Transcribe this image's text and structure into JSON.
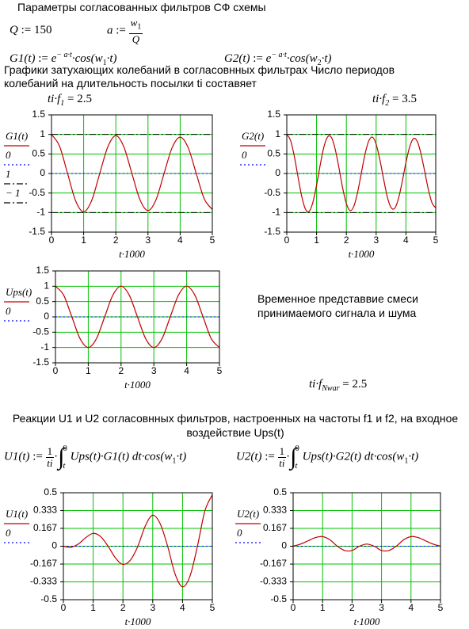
{
  "header": {
    "title": "Параметры согласованных фильтров СФ схемы"
  },
  "definitions": {
    "q": [
      "Q",
      ":=",
      "150"
    ],
    "a": [
      "a",
      ":=",
      "w",
      "1",
      "Q"
    ]
  },
  "functions": {
    "g1": [
      "G1(t)",
      ":=",
      "e",
      "− a·t",
      "·cos(w",
      "1",
      "·t)"
    ],
    "g2": [
      "G2(t)",
      ":=",
      "e",
      "− a·t",
      "·cos(w",
      "2",
      "·t)"
    ]
  },
  "section1": "Графики затухающих колебаний в согласовнных фильтрах Число периодов колебаний на длительность посылки ti составяет",
  "ratios": {
    "f1": [
      "ti·f",
      "1",
      "= 2.5"
    ],
    "f2": [
      "ti·f",
      "2",
      "= 3.5"
    ],
    "nwar": [
      "ti·f",
      "Nwar",
      "= 2.5"
    ]
  },
  "note": "Временное представвие смеси принимаемого сигнала и шума",
  "section2": "Реакции U1 и U2 согласовнных фильтров, настроенных на частоты f1 и f2, на входное воздействие Ups(t)",
  "reactions": {
    "u1": [
      "U1(t)",
      ":=",
      "1",
      "ti",
      "·",
      "∫",
      "0",
      "t",
      "Ups(t)·G1(t) dt·cos(w",
      "1",
      "·t)"
    ],
    "u2": [
      "U2(t)",
      ":=",
      "1",
      "ti",
      "·",
      "∫",
      "0",
      "t",
      "Ups(t)·G2(t) dt·cos(w",
      "1",
      "·t)"
    ]
  },
  "chart_data": [
    {
      "type": "line",
      "x_label": "t·1000",
      "x": [
        0,
        0.25,
        0.5,
        0.75,
        1,
        1.25,
        1.5,
        1.75,
        2,
        2.25,
        2.5,
        2.75,
        3,
        3.25,
        3.5,
        3.75,
        4,
        4.25,
        4.5,
        4.75,
        5
      ],
      "series": [
        {
          "name": "G1(t)",
          "color": "#c00000",
          "values": [
            1,
            0.7,
            0,
            -0.7,
            -0.98,
            -0.69,
            0,
            0.68,
            0.97,
            0.68,
            0,
            -0.67,
            -0.95,
            -0.67,
            0,
            0.66,
            0.93,
            0.66,
            0,
            -0.65,
            -0.92
          ]
        }
      ],
      "hlines": [
        {
          "name": "0",
          "value": 0,
          "color": "#0000ff",
          "style": "dotted"
        },
        {
          "name": "1",
          "value": 1,
          "color": "#000000",
          "style": "dash-dot"
        },
        {
          "name": "− 1",
          "value": -1,
          "color": "#000000",
          "style": "dash-dot"
        }
      ],
      "xlim": [
        0,
        5
      ],
      "ylim": [
        -1.5,
        1.5
      ],
      "xticks": [
        0,
        1,
        2,
        3,
        4,
        5
      ],
      "yticks": [
        1.5,
        1,
        0.5,
        0,
        -0.5,
        -1,
        -1.5
      ],
      "grid": true,
      "grid_color": "#00c000"
    },
    {
      "type": "line",
      "x_label": "t·1000",
      "x": [
        0,
        0.125,
        0.25,
        0.375,
        0.5,
        0.625,
        0.75,
        0.875,
        1,
        1.125,
        1.25,
        1.375,
        1.5,
        1.625,
        1.75,
        1.875,
        2,
        2.125,
        2.25,
        2.375,
        2.5,
        2.625,
        2.75,
        2.875,
        3,
        3.125,
        3.25,
        3.375,
        3.5,
        3.625,
        3.75,
        3.875,
        4,
        4.125,
        4.25,
        4.375,
        4.5,
        4.625,
        4.75,
        4.875,
        5
      ],
      "series": [
        {
          "name": "G2(t)",
          "color": "#c00000",
          "values": [
            1,
            0.85,
            0.45,
            -0.08,
            -0.58,
            -0.91,
            -0.97,
            -0.74,
            -0.3,
            0.23,
            0.69,
            0.94,
            0.92,
            0.62,
            0.15,
            -0.37,
            -0.77,
            -0.95,
            -0.84,
            -0.49,
            0,
            0.49,
            0.83,
            0.93,
            0.75,
            0.35,
            -0.14,
            -0.6,
            -0.87,
            -0.89,
            -0.64,
            -0.21,
            0.28,
            0.68,
            0.89,
            0.83,
            0.52,
            0.07,
            -0.4,
            -0.75,
            -0.88
          ]
        }
      ],
      "hlines": [
        {
          "name": "0",
          "value": 0,
          "color": "#0000ff",
          "style": "dotted"
        },
        {
          "value": 1,
          "color": "#000000",
          "style": "dash-dot"
        },
        {
          "value": -1,
          "color": "#000000",
          "style": "dash-dot"
        }
      ],
      "xlim": [
        0,
        5
      ],
      "ylim": [
        -1.5,
        1.5
      ],
      "xticks": [
        0,
        1,
        2,
        3,
        4,
        5
      ],
      "yticks": [
        1.5,
        1,
        0.5,
        0,
        -0.5,
        -1,
        -1.5
      ],
      "grid": true,
      "grid_color": "#00c000"
    },
    {
      "type": "line",
      "x_label": "t·1000",
      "x": [
        0,
        0.25,
        0.5,
        0.75,
        1,
        1.25,
        1.5,
        1.75,
        2,
        2.25,
        2.5,
        2.75,
        3,
        3.25,
        3.5,
        3.75,
        4,
        4.25,
        4.5,
        4.75,
        5
      ],
      "series": [
        {
          "name": "Ups(t)",
          "color": "#c00000",
          "values": [
            1,
            0.71,
            0,
            -0.71,
            -1,
            -0.71,
            0,
            0.71,
            1,
            0.71,
            0,
            -0.71,
            -1,
            -0.71,
            0,
            0.71,
            1,
            0.71,
            0,
            -0.71,
            -1
          ]
        }
      ],
      "hlines": [
        {
          "name": "0",
          "value": 0,
          "color": "#0000ff",
          "style": "dotted"
        }
      ],
      "xlim": [
        0,
        5
      ],
      "ylim": [
        -1.5,
        1.5
      ],
      "xticks": [
        0,
        1,
        2,
        3,
        4,
        5
      ],
      "yticks": [
        1.5,
        1,
        0.5,
        0,
        -0.5,
        -1,
        -1.5
      ],
      "grid": true,
      "grid_color": "#00c000"
    },
    {
      "type": "line",
      "x_label": "t·1000",
      "x": [
        0,
        0.25,
        0.5,
        0.75,
        1,
        1.25,
        1.5,
        1.75,
        2,
        2.25,
        2.5,
        2.75,
        3,
        3.25,
        3.5,
        3.75,
        4,
        4.25,
        4.5,
        4.75,
        5
      ],
      "series": [
        {
          "name": "U1(t)",
          "color": "#c00000",
          "values": [
            0,
            -0.01,
            0.02,
            0.08,
            0.12,
            0.09,
            0,
            -0.11,
            -0.17,
            -0.13,
            0,
            0.19,
            0.29,
            0.21,
            0,
            -0.26,
            -0.38,
            -0.28,
            0,
            0.33,
            0.48
          ]
        }
      ],
      "hlines": [
        {
          "name": "0",
          "value": 0,
          "color": "#0000ff",
          "style": "dotted"
        }
      ],
      "xlim": [
        0,
        5
      ],
      "ylim": [
        -0.5,
        0.5
      ],
      "xticks": [
        0,
        1,
        2,
        3,
        4,
        5
      ],
      "yticks": [
        0.5,
        0.333,
        0.167,
        0,
        -0.167,
        -0.333,
        -0.5
      ],
      "grid": true,
      "grid_color": "#00c000"
    },
    {
      "type": "line",
      "x_label": "t·1000",
      "x": [
        0,
        0.25,
        0.5,
        0.75,
        1,
        1.25,
        1.5,
        1.75,
        2,
        2.25,
        2.5,
        2.75,
        3,
        3.25,
        3.5,
        3.75,
        4,
        4.25,
        4.5,
        4.75,
        5
      ],
      "series": [
        {
          "name": "U2(t)",
          "color": "#c00000",
          "values": [
            0,
            0.02,
            0.05,
            0.08,
            0.09,
            0.06,
            0,
            -0.04,
            -0.04,
            0,
            0.02,
            0,
            -0.04,
            -0.04,
            0,
            0.06,
            0.09,
            0.08,
            0.05,
            0.02,
            0
          ]
        }
      ],
      "hlines": [
        {
          "name": "0",
          "value": 0,
          "color": "#0000ff",
          "style": "dotted"
        }
      ],
      "xlim": [
        0,
        5
      ],
      "ylim": [
        -0.5,
        0.5
      ],
      "xticks": [
        0,
        1,
        2,
        3,
        4,
        5
      ],
      "yticks": [
        0.5,
        0.333,
        0.167,
        0,
        -0.167,
        -0.333,
        -0.5
      ],
      "grid": true,
      "grid_color": "#00c000"
    }
  ]
}
